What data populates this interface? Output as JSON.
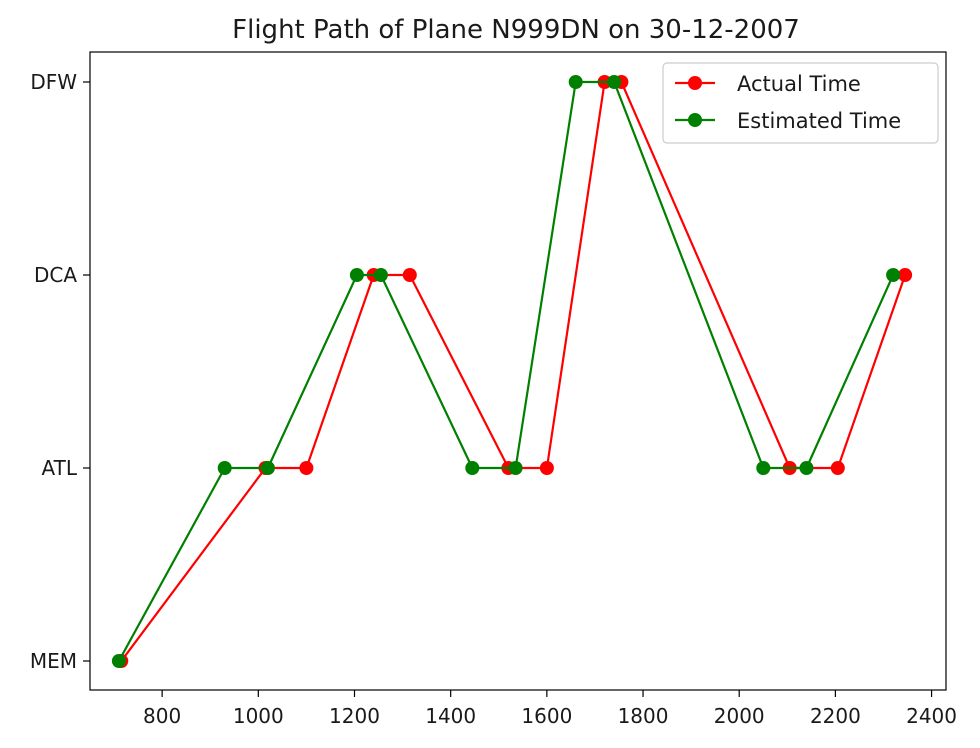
{
  "chart_data": {
    "type": "line",
    "title": "Flight Path of Plane N999DN on 30-12-2007",
    "xlabel": "",
    "ylabel": "",
    "xlim": [
      650,
      2430
    ],
    "xticks": [
      800,
      1000,
      1200,
      1400,
      1600,
      1800,
      2000,
      2200,
      2400
    ],
    "categories": [
      "MEM",
      "ATL",
      "DCA",
      "DFW"
    ],
    "legend_position": "top-right",
    "grid": false,
    "series": [
      {
        "name": "Actual Time",
        "color": "#ff0000",
        "x": [
          715,
          1015,
          1100,
          1240,
          1315,
          1520,
          1600,
          1720,
          1755,
          2105,
          2205,
          2345
        ],
        "y": [
          "MEM",
          "ATL",
          "ATL",
          "DCA",
          "DCA",
          "ATL",
          "ATL",
          "DFW",
          "DFW",
          "ATL",
          "ATL",
          "DCA"
        ]
      },
      {
        "name": "Estimated Time",
        "color": "#008000",
        "x": [
          710,
          930,
          1020,
          1205,
          1255,
          1445,
          1535,
          1660,
          1740,
          2050,
          2140,
          2320
        ],
        "y": [
          "MEM",
          "ATL",
          "ATL",
          "DCA",
          "DCA",
          "ATL",
          "ATL",
          "DFW",
          "DFW",
          "ATL",
          "ATL",
          "DCA"
        ]
      }
    ]
  }
}
